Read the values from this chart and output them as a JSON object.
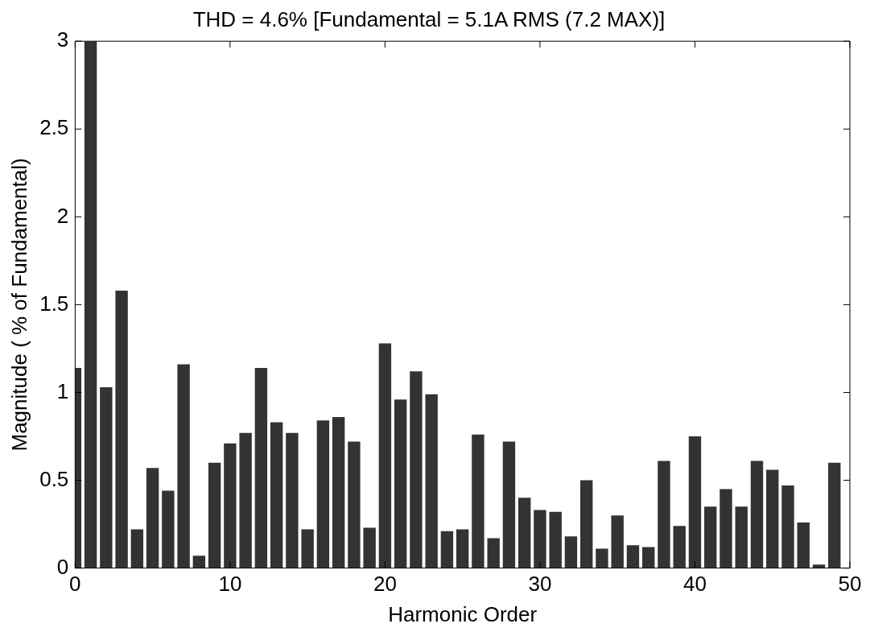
{
  "chart_data": {
    "type": "bar",
    "title": "THD = 4.6% [Fundamental = 5.1A RMS (7.2 MAX)]",
    "xlabel": "Harmonic Order",
    "ylabel": "Magnitude ( % of Fundamental)",
    "x": [
      0,
      1,
      2,
      3,
      4,
      5,
      6,
      7,
      8,
      9,
      10,
      11,
      12,
      13,
      14,
      15,
      16,
      17,
      18,
      19,
      20,
      21,
      22,
      23,
      24,
      25,
      26,
      27,
      28,
      29,
      30,
      31,
      32,
      33,
      34,
      35,
      36,
      37,
      38,
      39,
      40,
      41,
      42,
      43,
      44,
      45,
      46,
      47,
      48,
      49
    ],
    "values": [
      1.14,
      3,
      1.03,
      1.58,
      0.22,
      0.57,
      0.44,
      1.16,
      0.07,
      0.6,
      0.71,
      0.77,
      1.14,
      0.83,
      0.77,
      0.22,
      0.84,
      0.86,
      0.72,
      0.23,
      1.28,
      0.96,
      1.12,
      0.99,
      0.21,
      0.22,
      0.76,
      0.17,
      0.72,
      0.4,
      0.33,
      0.32,
      0.18,
      0.5,
      0.11,
      0.3,
      0.13,
      0.12,
      0.61,
      0.24,
      0.75,
      0.35,
      0.45,
      0.35,
      0.61,
      0.56,
      0.47,
      0.26,
      0.02,
      0.6
    ],
    "color": "#333333",
    "xlim": [
      0,
      50
    ],
    "xticks": [
      0,
      10,
      20,
      30,
      40,
      50
    ],
    "ylim": [
      0,
      3
    ],
    "yticks": [
      0,
      0.5,
      1,
      1.5,
      2,
      2.5,
      3
    ],
    "grid": false,
    "legend": false
  }
}
